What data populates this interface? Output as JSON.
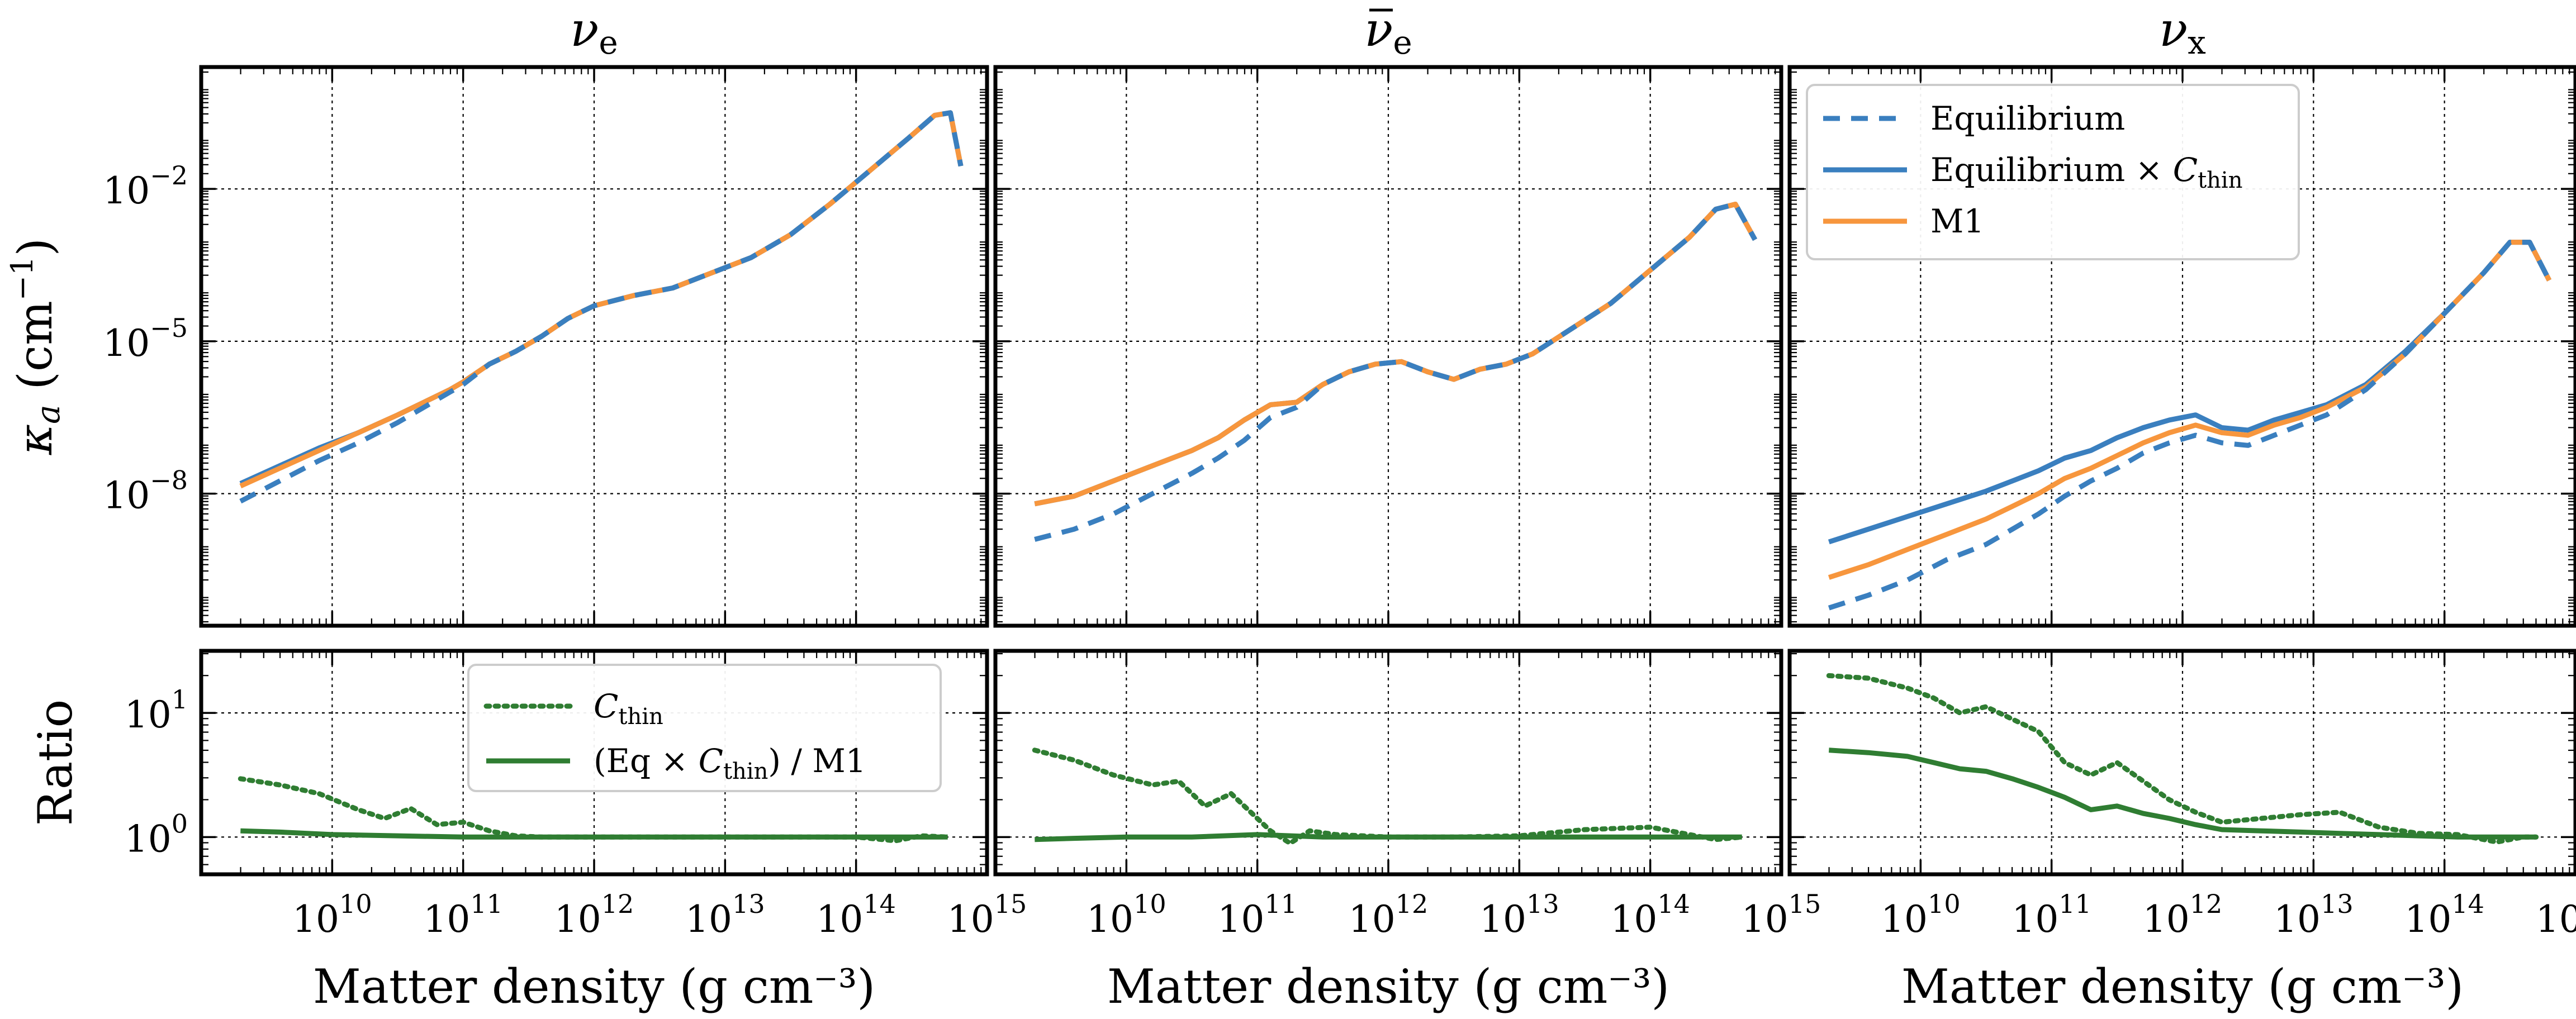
{
  "chart_data": {
    "type": "line",
    "figure_caption": "Absorption opacity kappa_a vs matter density for three neutrino species",
    "colors": {
      "equilibrium": "#3a7fbf",
      "equilibrium_cthin": "#3a7fbf",
      "m1": "#f7963d",
      "ratio": "#2f7d32"
    },
    "xlabel": "Matter density (g cm⁻³)",
    "xlim_log10": [
      9.0,
      15.0
    ],
    "xticks": [
      {
        "value": 10,
        "base": "10",
        "exp": "10"
      },
      {
        "value": 11,
        "base": "10",
        "exp": "11"
      },
      {
        "value": 12,
        "base": "10",
        "exp": "12"
      },
      {
        "value": 13,
        "base": "10",
        "exp": "13"
      },
      {
        "value": 14,
        "base": "10",
        "exp": "14"
      },
      {
        "value": 15,
        "base": "10",
        "exp": "15"
      }
    ],
    "top_ylabel_main": "κ",
    "top_ylabel_sub": "a",
    "top_ylabel_unit": "(cm",
    "top_ylabel_unit_exp": "−1",
    "top_ylabel_close": ")",
    "top_ylim_log10": [
      -10.6,
      0.4
    ],
    "top_yticks": [
      {
        "value": -8,
        "base": "10",
        "exp": "−8"
      },
      {
        "value": -5,
        "base": "10",
        "exp": "−5"
      },
      {
        "value": -2,
        "base": "10",
        "exp": "−2"
      }
    ],
    "ratio_ylabel": "Ratio",
    "ratio_ylim_log10": [
      -0.3,
      1.5
    ],
    "ratio_yticks": [
      {
        "value": 0,
        "base": "10",
        "exp": "0"
      },
      {
        "value": 1,
        "base": "10",
        "exp": "1"
      }
    ],
    "legend_top": {
      "location": "upper-left",
      "entries": [
        {
          "label": "Equilibrium",
          "series": "equilibrium"
        },
        {
          "label": "Equilibrium × ",
          "math_main": "C",
          "math_sub": "thin",
          "series": "equilibrium_cthin"
        },
        {
          "label": "M1",
          "series": "m1"
        }
      ]
    },
    "legend_ratio": {
      "location": "upper-center",
      "entries": [
        {
          "math_main": "C",
          "math_sub": "thin",
          "series": "cthin"
        },
        {
          "label": "(Eq × ",
          "math_main": "C",
          "math_sub": "thin",
          "label_after": ") / M1",
          "series": "ratio"
        }
      ]
    },
    "panels": [
      {
        "title_main": "ν",
        "title_sub": "e",
        "title_bar": false,
        "top_series": {
          "equilibrium": {
            "x": [
              9.3,
              9.6,
              9.9,
              10.2,
              10.5,
              10.7,
              10.9,
              11.0,
              11.2,
              11.4,
              11.6,
              11.8,
              12.0,
              12.3,
              12.6,
              12.9,
              13.2,
              13.5,
              13.8,
              14.1,
              14.4,
              14.6,
              14.72,
              14.8
            ],
            "y": [
              -8.15,
              -7.75,
              -7.35,
              -7.0,
              -6.6,
              -6.3,
              -6.0,
              -5.85,
              -5.45,
              -5.2,
              -4.9,
              -4.55,
              -4.3,
              -4.1,
              -3.95,
              -3.65,
              -3.35,
              -2.9,
              -2.3,
              -1.65,
              -1.0,
              -0.55,
              -0.5,
              -1.55
            ]
          },
          "equilibrium_cthin": {
            "x": [
              9.3,
              9.6,
              9.9,
              10.2,
              10.5,
              10.7,
              10.9,
              11.0,
              11.2,
              11.4,
              11.6,
              11.8,
              12.0,
              12.3,
              12.6,
              12.9,
              13.2,
              13.5,
              13.8,
              14.1,
              14.4,
              14.6,
              14.72,
              14.8
            ],
            "y": [
              -7.8,
              -7.45,
              -7.1,
              -6.8,
              -6.45,
              -6.2,
              -5.95,
              -5.8,
              -5.45,
              -5.2,
              -4.9,
              -4.55,
              -4.3,
              -4.1,
              -3.95,
              -3.65,
              -3.35,
              -2.9,
              -2.3,
              -1.65,
              -1.0,
              -0.55,
              -0.5,
              -1.55
            ]
          },
          "m1": {
            "x": [
              9.3,
              9.6,
              9.9,
              10.2,
              10.5,
              10.7,
              10.9,
              11.0,
              11.2,
              11.4,
              11.6,
              11.8,
              12.0,
              12.3,
              12.6,
              12.9,
              13.2,
              13.5,
              13.8,
              14.1,
              14.4,
              14.6,
              14.72,
              14.8
            ],
            "y": [
              -7.85,
              -7.5,
              -7.15,
              -6.8,
              -6.45,
              -6.2,
              -5.95,
              -5.8,
              -5.45,
              -5.2,
              -4.9,
              -4.55,
              -4.3,
              -4.1,
              -3.95,
              -3.65,
              -3.35,
              -2.9,
              -2.3,
              -1.65,
              -1.0,
              -0.55,
              -0.5,
              -1.55
            ]
          }
        },
        "ratio_series": {
          "cthin": {
            "x": [
              9.3,
              9.6,
              9.9,
              10.2,
              10.4,
              10.6,
              10.8,
              11.0,
              11.2,
              11.4,
              11.6,
              12.0,
              12.5,
              13.0,
              13.5,
              14.0,
              14.3,
              14.5,
              14.7
            ],
            "y": [
              0.47,
              0.42,
              0.35,
              0.22,
              0.15,
              0.23,
              0.1,
              0.12,
              0.05,
              0.01,
              0.0,
              0.0,
              0.0,
              0.0,
              0.0,
              0.0,
              -0.03,
              0.01,
              0.0
            ]
          },
          "ratio": {
            "x": [
              9.3,
              9.6,
              10.0,
              10.5,
              11.0,
              11.5,
              12.0,
              12.5,
              13.0,
              13.5,
              14.0,
              14.3,
              14.5,
              14.7
            ],
            "y": [
              0.05,
              0.04,
              0.02,
              0.01,
              0.0,
              0.0,
              0.0,
              0.0,
              0.0,
              0.0,
              0.0,
              0.0,
              0.0,
              0.0
            ]
          }
        }
      },
      {
        "title_main": "ν",
        "title_sub": "e",
        "title_bar": true,
        "top_series": {
          "equilibrium": {
            "x": [
              9.3,
              9.6,
              9.9,
              10.2,
              10.5,
              10.7,
              10.9,
              11.1,
              11.3,
              11.5,
              11.7,
              11.9,
              12.1,
              12.3,
              12.5,
              12.7,
              12.9,
              13.1,
              13.4,
              13.7,
              14.0,
              14.3,
              14.5,
              14.65,
              14.8
            ],
            "y": [
              -8.9,
              -8.7,
              -8.4,
              -8.0,
              -7.6,
              -7.3,
              -6.95,
              -6.5,
              -6.3,
              -5.85,
              -5.6,
              -5.45,
              -5.4,
              -5.6,
              -5.75,
              -5.55,
              -5.45,
              -5.25,
              -4.75,
              -4.25,
              -3.6,
              -2.95,
              -2.4,
              -2.3,
              -3.0
            ]
          },
          "equilibrium_cthin": {
            "x": [
              9.3,
              9.6,
              9.9,
              10.2,
              10.5,
              10.7,
              10.9,
              11.1,
              11.3,
              11.5,
              11.7,
              11.9,
              12.1,
              12.3,
              12.5,
              12.7,
              12.9,
              13.1,
              13.4,
              13.7,
              14.0,
              14.3,
              14.5,
              14.65,
              14.8
            ],
            "y": [
              -8.2,
              -8.05,
              -7.75,
              -7.45,
              -7.15,
              -6.9,
              -6.55,
              -6.25,
              -6.2,
              -5.85,
              -5.6,
              -5.45,
              -5.4,
              -5.6,
              -5.75,
              -5.55,
              -5.45,
              -5.25,
              -4.75,
              -4.25,
              -3.6,
              -2.95,
              -2.4,
              -2.3,
              -3.0
            ]
          },
          "m1": {
            "x": [
              9.3,
              9.6,
              9.9,
              10.2,
              10.5,
              10.7,
              10.9,
              11.1,
              11.3,
              11.5,
              11.7,
              11.9,
              12.1,
              12.3,
              12.5,
              12.7,
              12.9,
              13.1,
              13.4,
              13.7,
              14.0,
              14.3,
              14.5,
              14.65,
              14.8
            ],
            "y": [
              -8.2,
              -8.05,
              -7.75,
              -7.45,
              -7.15,
              -6.9,
              -6.55,
              -6.25,
              -6.2,
              -5.85,
              -5.6,
              -5.45,
              -5.4,
              -5.6,
              -5.75,
              -5.55,
              -5.45,
              -5.25,
              -4.75,
              -4.25,
              -3.6,
              -2.95,
              -2.4,
              -2.3,
              -3.0
            ]
          }
        },
        "ratio_series": {
          "cthin": {
            "x": [
              9.3,
              9.6,
              9.9,
              10.2,
              10.4,
              10.6,
              10.8,
              10.95,
              11.1,
              11.25,
              11.4,
              11.6,
              12.0,
              12.5,
              13.0,
              13.5,
              14.0,
              14.3,
              14.5,
              14.7
            ],
            "y": [
              0.7,
              0.62,
              0.5,
              0.42,
              0.45,
              0.25,
              0.35,
              0.2,
              0.05,
              -0.05,
              0.05,
              0.02,
              0.0,
              0.0,
              0.01,
              0.06,
              0.08,
              0.02,
              -0.02,
              0.0
            ]
          },
          "ratio": {
            "x": [
              9.3,
              9.6,
              10.0,
              10.5,
              11.0,
              11.5,
              12.0,
              12.5,
              13.0,
              13.5,
              14.0,
              14.3,
              14.5,
              14.7
            ],
            "y": [
              -0.02,
              -0.01,
              0.0,
              0.0,
              0.02,
              0.0,
              0.0,
              0.0,
              0.0,
              0.0,
              0.0,
              0.0,
              0.0,
              0.0
            ]
          }
        }
      },
      {
        "title_main": "ν",
        "title_sub": "x",
        "title_bar": false,
        "top_series": {
          "equilibrium": {
            "x": [
              9.3,
              9.6,
              9.9,
              10.2,
              10.5,
              10.7,
              10.9,
              11.1,
              11.3,
              11.5,
              11.7,
              11.9,
              12.1,
              12.3,
              12.5,
              12.7,
              12.9,
              13.1,
              13.4,
              13.7,
              14.0,
              14.3,
              14.5,
              14.65,
              14.8
            ],
            "y": [
              -10.25,
              -10.0,
              -9.7,
              -9.3,
              -9.0,
              -8.7,
              -8.4,
              -8.05,
              -7.75,
              -7.5,
              -7.2,
              -7.0,
              -6.85,
              -7.0,
              -7.05,
              -6.85,
              -6.65,
              -6.45,
              -5.95,
              -5.25,
              -4.45,
              -3.65,
              -3.05,
              -3.05,
              -3.8
            ]
          },
          "equilibrium_cthin": {
            "x": [
              9.3,
              9.6,
              9.9,
              10.2,
              10.5,
              10.7,
              10.9,
              11.1,
              11.3,
              11.5,
              11.7,
              11.9,
              12.1,
              12.3,
              12.5,
              12.7,
              12.9,
              13.1,
              13.4,
              13.7,
              14.0,
              14.3,
              14.5,
              14.65,
              14.8
            ],
            "y": [
              -8.95,
              -8.7,
              -8.45,
              -8.2,
              -7.95,
              -7.75,
              -7.55,
              -7.3,
              -7.15,
              -6.9,
              -6.7,
              -6.55,
              -6.45,
              -6.7,
              -6.75,
              -6.55,
              -6.4,
              -6.25,
              -5.85,
              -5.2,
              -4.45,
              -3.65,
              -3.05,
              -3.05,
              -3.8
            ]
          },
          "m1": {
            "x": [
              9.3,
              9.6,
              9.9,
              10.2,
              10.5,
              10.7,
              10.9,
              11.1,
              11.3,
              11.5,
              11.7,
              11.9,
              12.1,
              12.3,
              12.5,
              12.7,
              12.9,
              13.1,
              13.4,
              13.7,
              14.0,
              14.3,
              14.5,
              14.65,
              14.8
            ],
            "y": [
              -9.65,
              -9.4,
              -9.1,
              -8.8,
              -8.5,
              -8.25,
              -8.0,
              -7.7,
              -7.5,
              -7.25,
              -7.0,
              -6.8,
              -6.65,
              -6.8,
              -6.85,
              -6.65,
              -6.5,
              -6.3,
              -5.9,
              -5.25,
              -4.45,
              -3.65,
              -3.05,
              -3.05,
              -3.8
            ]
          }
        },
        "ratio_series": {
          "cthin": {
            "x": [
              9.3,
              9.6,
              9.9,
              10.1,
              10.3,
              10.5,
              10.7,
              10.9,
              11.1,
              11.3,
              11.5,
              11.7,
              11.9,
              12.1,
              12.3,
              12.6,
              12.9,
              13.2,
              13.5,
              13.8,
              14.1,
              14.4,
              14.6,
              14.7
            ],
            "y": [
              1.3,
              1.28,
              1.2,
              1.12,
              1.0,
              1.05,
              0.95,
              0.85,
              0.6,
              0.5,
              0.6,
              0.45,
              0.3,
              0.2,
              0.12,
              0.15,
              0.18,
              0.2,
              0.08,
              0.03,
              0.02,
              -0.04,
              0.0,
              0.0
            ]
          },
          "ratio": {
            "x": [
              9.3,
              9.6,
              9.9,
              10.1,
              10.3,
              10.5,
              10.7,
              10.9,
              11.1,
              11.3,
              11.5,
              11.7,
              11.9,
              12.1,
              12.3,
              12.6,
              12.9,
              13.2,
              13.5,
              13.8,
              14.1,
              14.4,
              14.6,
              14.7
            ],
            "y": [
              0.7,
              0.68,
              0.65,
              0.6,
              0.55,
              0.53,
              0.47,
              0.4,
              0.32,
              0.22,
              0.25,
              0.19,
              0.15,
              0.1,
              0.06,
              0.05,
              0.04,
              0.03,
              0.02,
              0.01,
              0.0,
              0.0,
              0.0,
              0.0
            ]
          }
        }
      }
    ]
  }
}
